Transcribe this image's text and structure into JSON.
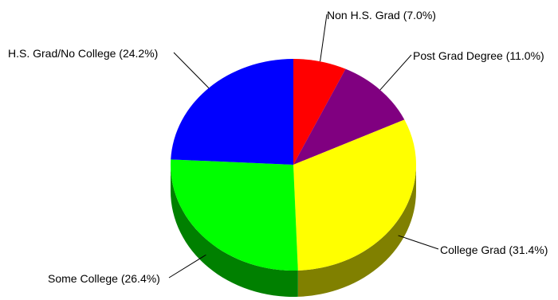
{
  "chart_data": {
    "type": "pie",
    "style": "3d",
    "start_angle_deg": 90,
    "direction": "clockwise",
    "slices": [
      {
        "label": "Non H.S. Grad (7.0%)",
        "category": "Non H.S. Grad",
        "value": 7.0,
        "color": "#ff0000",
        "side_color": "#800000"
      },
      {
        "label": "Post Grad Degree (11.0%)",
        "category": "Post Grad Degree",
        "value": 11.0,
        "color": "#800080",
        "side_color": "#400040"
      },
      {
        "label": "College Grad (31.4%)",
        "category": "College Grad",
        "value": 31.4,
        "color": "#ffff00",
        "side_color": "#808000"
      },
      {
        "label": "Some College (26.4%)",
        "category": "Some College",
        "value": 26.4,
        "color": "#00ff00",
        "side_color": "#008000"
      },
      {
        "label": "H.S. Grad/No College (24.2%)",
        "category": "H.S. Grad/No College",
        "value": 24.2,
        "color": "#0000ff",
        "side_color": "#000080"
      }
    ],
    "title": "",
    "legend": "none"
  }
}
